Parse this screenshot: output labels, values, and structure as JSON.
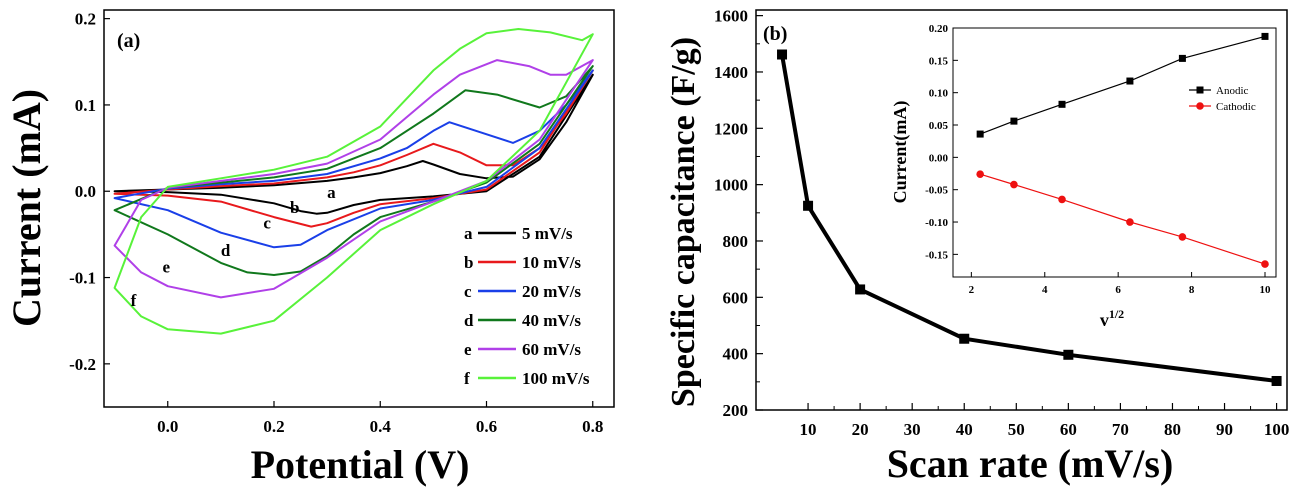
{
  "chart_data": [
    {
      "panel": "(a)",
      "type": "line",
      "xlabel": "Potential (V)",
      "ylabel": "Current (mA)",
      "xlim": [
        -0.12,
        0.84
      ],
      "ylim": [
        -0.25,
        0.21
      ],
      "xticks": [
        0.0,
        0.2,
        0.4,
        0.6,
        0.8
      ],
      "xtick_labels": [
        "0.0",
        "0.2",
        "0.4",
        "0.6",
        "0.8"
      ],
      "yticks": [
        -0.2,
        -0.1,
        0.0,
        0.1,
        0.2
      ],
      "ytick_labels": [
        "-0.2",
        "-0.1",
        "0.0",
        "0.1",
        "0.2"
      ],
      "legend_position": "bottom-right",
      "series": [
        {
          "letter": "a",
          "name": "5 mV/s",
          "color": "#000000",
          "anodic_x": [
            -0.1,
            0.0,
            0.1,
            0.2,
            0.3,
            0.35,
            0.4,
            0.45,
            0.48,
            0.5,
            0.55,
            0.6,
            0.65,
            0.7,
            0.75,
            0.8
          ],
          "anodic_y": [
            0.0,
            0.002,
            0.004,
            0.007,
            0.012,
            0.016,
            0.021,
            0.029,
            0.035,
            0.031,
            0.02,
            0.015,
            0.017,
            0.037,
            0.08,
            0.135
          ],
          "cathodic_x": [
            0.8,
            0.7,
            0.6,
            0.5,
            0.4,
            0.35,
            0.3,
            0.28,
            0.25,
            0.2,
            0.1,
            0.0,
            -0.1
          ],
          "cathodic_y": [
            0.135,
            0.04,
            0.0,
            -0.006,
            -0.01,
            -0.016,
            -0.025,
            -0.026,
            -0.023,
            -0.014,
            -0.004,
            -0.001,
            0.0
          ]
        },
        {
          "letter": "b",
          "name": "10 mV/s",
          "color": "#e8191c",
          "anodic_x": [
            -0.1,
            0.0,
            0.1,
            0.2,
            0.3,
            0.35,
            0.4,
            0.45,
            0.5,
            0.55,
            0.6,
            0.65,
            0.7,
            0.75,
            0.8
          ],
          "anodic_y": [
            -0.003,
            0.002,
            0.006,
            0.009,
            0.016,
            0.022,
            0.03,
            0.042,
            0.055,
            0.045,
            0.03,
            0.03,
            0.05,
            0.09,
            0.14
          ],
          "cathodic_x": [
            0.8,
            0.7,
            0.6,
            0.5,
            0.4,
            0.35,
            0.3,
            0.27,
            0.2,
            0.1,
            0.0,
            -0.1
          ],
          "cathodic_y": [
            0.14,
            0.045,
            0.002,
            -0.008,
            -0.015,
            -0.025,
            -0.037,
            -0.041,
            -0.03,
            -0.012,
            -0.005,
            -0.003
          ]
        },
        {
          "letter": "c",
          "name": "20 mV/s",
          "color": "#1a3fe8",
          "anodic_x": [
            -0.1,
            0.0,
            0.1,
            0.2,
            0.3,
            0.4,
            0.45,
            0.5,
            0.53,
            0.58,
            0.65,
            0.7,
            0.75,
            0.8
          ],
          "anodic_y": [
            -0.008,
            0.003,
            0.008,
            0.012,
            0.02,
            0.038,
            0.05,
            0.07,
            0.08,
            0.07,
            0.056,
            0.07,
            0.1,
            0.14
          ],
          "cathodic_x": [
            0.8,
            0.7,
            0.6,
            0.5,
            0.4,
            0.3,
            0.25,
            0.2,
            0.1,
            0.0,
            -0.1
          ],
          "cathodic_y": [
            0.14,
            0.05,
            0.005,
            -0.01,
            -0.02,
            -0.045,
            -0.062,
            -0.065,
            -0.048,
            -0.022,
            -0.008
          ]
        },
        {
          "letter": "d",
          "name": "40 mV/s",
          "color": "#10781c",
          "anodic_x": [
            -0.1,
            0.0,
            0.1,
            0.2,
            0.3,
            0.4,
            0.5,
            0.56,
            0.62,
            0.7,
            0.75,
            0.8
          ],
          "anodic_y": [
            -0.022,
            0.004,
            0.01,
            0.016,
            0.026,
            0.05,
            0.09,
            0.117,
            0.112,
            0.097,
            0.11,
            0.145
          ],
          "cathodic_x": [
            0.8,
            0.7,
            0.6,
            0.5,
            0.4,
            0.35,
            0.3,
            0.25,
            0.2,
            0.15,
            0.1,
            0.0,
            -0.1
          ],
          "cathodic_y": [
            0.145,
            0.055,
            0.01,
            -0.012,
            -0.03,
            -0.05,
            -0.075,
            -0.093,
            -0.097,
            -0.094,
            -0.083,
            -0.05,
            -0.022
          ]
        },
        {
          "letter": "e",
          "name": "60 mV/s",
          "color": "#b040e8",
          "anodic_x": [
            -0.1,
            -0.05,
            0.0,
            0.1,
            0.2,
            0.3,
            0.4,
            0.5,
            0.55,
            0.62,
            0.68,
            0.72,
            0.75,
            0.8
          ],
          "anodic_y": [
            -0.063,
            -0.01,
            0.004,
            0.012,
            0.02,
            0.032,
            0.06,
            0.112,
            0.135,
            0.152,
            0.145,
            0.135,
            0.135,
            0.152
          ],
          "cathodic_x": [
            0.8,
            0.7,
            0.6,
            0.5,
            0.4,
            0.3,
            0.2,
            0.1,
            0.0,
            -0.05,
            -0.1
          ],
          "cathodic_y": [
            0.152,
            0.06,
            0.012,
            -0.012,
            -0.035,
            -0.077,
            -0.113,
            -0.123,
            -0.11,
            -0.094,
            -0.063
          ]
        },
        {
          "letter": "f",
          "name": "100 mV/s",
          "color": "#58f23a",
          "anodic_x": [
            -0.1,
            -0.05,
            0.0,
            0.1,
            0.2,
            0.3,
            0.4,
            0.5,
            0.55,
            0.6,
            0.66,
            0.72,
            0.78,
            0.8
          ],
          "anodic_y": [
            -0.112,
            -0.03,
            0.005,
            0.015,
            0.025,
            0.04,
            0.075,
            0.14,
            0.165,
            0.183,
            0.188,
            0.184,
            0.175,
            0.182
          ],
          "cathodic_x": [
            0.8,
            0.7,
            0.6,
            0.5,
            0.4,
            0.3,
            0.2,
            0.1,
            0.0,
            -0.05,
            -0.1
          ],
          "cathodic_y": [
            0.182,
            0.07,
            0.012,
            -0.015,
            -0.045,
            -0.1,
            -0.15,
            -0.165,
            -0.16,
            -0.145,
            -0.112
          ]
        }
      ],
      "curve_labels": [
        {
          "text": "a",
          "x": 0.3,
          "y": -0.008
        },
        {
          "text": "b",
          "x": 0.23,
          "y": -0.025
        },
        {
          "text": "c",
          "x": 0.18,
          "y": -0.043
        },
        {
          "text": "d",
          "x": 0.1,
          "y": -0.075
        },
        {
          "text": "e",
          "x": -0.01,
          "y": -0.094
        },
        {
          "text": "f",
          "x": -0.07,
          "y": -0.133
        }
      ]
    },
    {
      "panel": "(b)",
      "type": "line",
      "xlabel": "Scan rate (mV/s)",
      "ylabel": "Specific capacitance (F/g)",
      "xlim": [
        0,
        102
      ],
      "ylim": [
        200,
        1620
      ],
      "xticks": [
        10,
        20,
        30,
        40,
        50,
        60,
        70,
        80,
        90,
        100
      ],
      "xtick_labels": [
        "10",
        "20",
        "30",
        "40",
        "50",
        "60",
        "70",
        "80",
        "90",
        "100"
      ],
      "yticks": [
        200,
        400,
        600,
        800,
        1000,
        1200,
        1400,
        1600
      ],
      "ytick_labels": [
        "200",
        "400",
        "600",
        "800",
        "1000",
        "1200",
        "1400",
        "1600"
      ],
      "series": [
        {
          "color": "#000000",
          "x": [
            5,
            10,
            20,
            40,
            60,
            100
          ],
          "y": [
            1462,
            925,
            628,
            453,
            396,
            303
          ]
        }
      ]
    },
    {
      "panel": "inset",
      "type": "line",
      "xlabel": "v",
      "xlabel_sup": "1/2",
      "ylabel": "Current(mA)",
      "xlim": [
        1.5,
        10.3
      ],
      "ylim": [
        -0.185,
        0.2
      ],
      "xticks": [
        2,
        4,
        6,
        8,
        10
      ],
      "xtick_labels": [
        "2",
        "4",
        "6",
        "8",
        "10"
      ],
      "yticks": [
        -0.15,
        -0.1,
        -0.05,
        0.0,
        0.05,
        0.1,
        0.15,
        0.2
      ],
      "ytick_labels": [
        "-0.15",
        "-0.10",
        "-0.05",
        "0.00",
        "0.05",
        "0.10",
        "0.15",
        "0.20"
      ],
      "legend_position": "top-right",
      "series": [
        {
          "name": "Anodic",
          "color": "#000000",
          "marker": "square",
          "x": [
            2.24,
            3.16,
            4.47,
            6.32,
            7.75,
            10.0
          ],
          "y": [
            0.036,
            0.056,
            0.082,
            0.118,
            0.153,
            0.187
          ]
        },
        {
          "name": "Cathodic",
          "color": "#ee1111",
          "marker": "circle",
          "x": [
            2.24,
            3.16,
            4.47,
            6.32,
            7.75,
            10.0
          ],
          "y": [
            -0.026,
            -0.042,
            -0.065,
            -0.1,
            -0.123,
            -0.165
          ]
        }
      ]
    }
  ]
}
